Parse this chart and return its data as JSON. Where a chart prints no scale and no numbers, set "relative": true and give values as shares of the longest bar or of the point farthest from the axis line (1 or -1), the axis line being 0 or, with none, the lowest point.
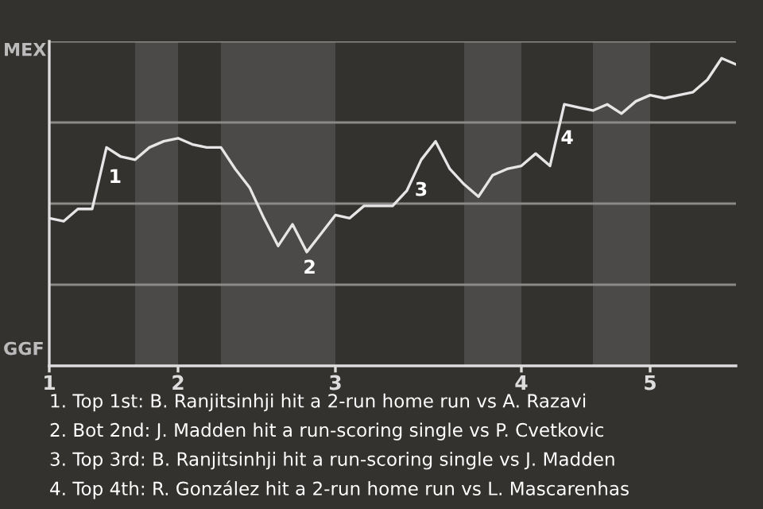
{
  "chart_data": {
    "type": "line",
    "categories": [
      "1",
      null,
      null,
      null,
      null,
      null,
      null,
      null,
      null,
      "2",
      null,
      null,
      null,
      null,
      null,
      null,
      null,
      null,
      null,
      null,
      "3",
      null,
      null,
      null,
      null,
      null,
      null,
      null,
      null,
      null,
      null,
      null,
      null,
      "4",
      null,
      null,
      null,
      null,
      null,
      null,
      null,
      null,
      "5",
      null,
      null,
      null,
      null,
      null,
      null
    ],
    "relative": true,
    "series": [
      {
        "color": "#e6e6e6",
        "values": [
          0.48,
          0.47,
          0.51,
          0.51,
          0.71,
          0.68,
          0.67,
          0.71,
          0.73,
          0.74,
          0.72,
          0.71,
          0.71,
          0.64,
          0.58,
          0.48,
          0.39,
          0.46,
          0.37,
          0.43,
          0.49,
          0.48,
          0.52,
          0.52,
          0.52,
          0.57,
          0.67,
          0.73,
          0.64,
          0.59,
          0.55,
          0.62,
          0.64,
          0.65,
          0.69,
          0.65,
          0.85,
          0.84,
          0.83,
          0.85,
          0.82,
          0.86,
          0.88,
          0.87,
          0.88,
          0.89,
          0.93,
          1,
          0.98
        ]
      }
    ],
    "grid": "y",
    "marker": "none",
    "line_style": "solid",
    "annotations": [
      "MEX",
      "GGF",
      "1",
      "2",
      "3",
      "4",
      "1. Top 1st: B. Ranjitsinhji hit a 2-run home run vs A. Razavi",
      "2. Bot 2nd: J. Madden hit a run-scoring single vs P. Cvetkovic",
      "3. Top 3rd: B. Ranjitsinhji hit a run-scoring single vs J. Madden",
      "4. Top 4th: R. González hit a 2-run home run vs L. Mascarenhas"
    ]
  }
}
